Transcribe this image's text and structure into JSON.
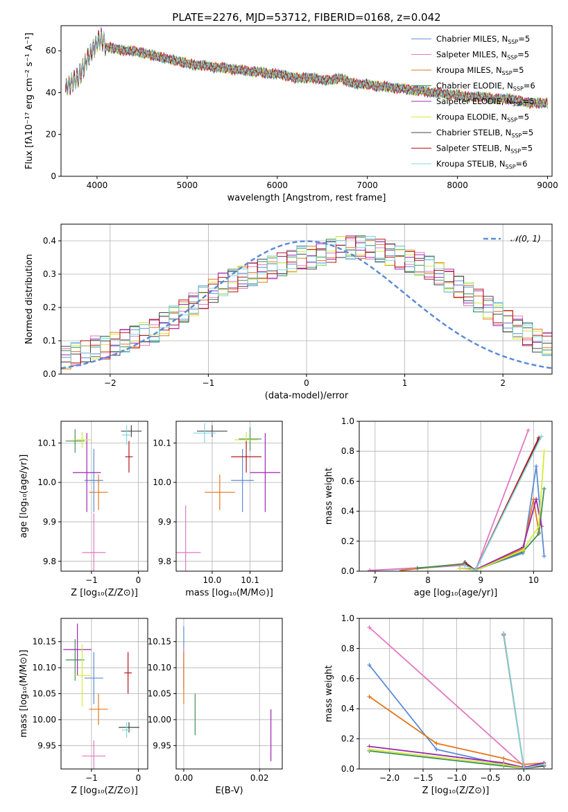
{
  "figure": {
    "title": "PLATE=2276, MJD=53712, FIBERID=0168, z=0.042"
  },
  "series": [
    {
      "name": "Chabrier MILES",
      "nssp": "5",
      "color": "#5b8bd6"
    },
    {
      "name": "Salpeter MILES",
      "nssp": "5",
      "color": "#e377c2"
    },
    {
      "name": "Kroupa MILES",
      "nssp": "5",
      "color": "#e3761b"
    },
    {
      "name": "Chabrier ELODIE",
      "nssp": "6",
      "color": "#3f8f55"
    },
    {
      "name": "Salpeter ELODIE",
      "nssp": "5",
      "color": "#9b27b0"
    },
    {
      "name": "Kroupa ELODIE",
      "nssp": "5",
      "color": "#d4ea3a"
    },
    {
      "name": "Chabrier STELIB",
      "nssp": "5",
      "color": "#444444"
    },
    {
      "name": "Salpeter STELIB",
      "nssp": "5",
      "color": "#b5141a"
    },
    {
      "name": "Kroupa STELIB",
      "nssp": "6",
      "color": "#7fd8dc"
    }
  ],
  "chart_data": [
    {
      "id": "spectrum",
      "type": "line",
      "xlabel": "wavelength [Angstrom, rest frame]",
      "ylabel": "Flux [fλ10⁻¹⁷ erg cm⁻² s⁻¹ A⁻¹]",
      "xlim": [
        3600,
        9050
      ],
      "ylim": [
        0,
        72
      ],
      "xticks": [
        4000,
        5000,
        6000,
        7000,
        8000,
        9000
      ],
      "yticks": [
        0,
        20,
        40,
        60
      ],
      "data_x": [
        3650,
        3700,
        3750,
        3800,
        3850,
        3900,
        3950,
        4000,
        4050,
        4100,
        4200,
        4300,
        4400,
        4500,
        4600,
        4700,
        4800,
        4900,
        5000,
        5100,
        5200,
        5300,
        5400,
        5500,
        5600,
        5700,
        5800,
        5900,
        6000,
        6100,
        6200,
        6300,
        6400,
        6500,
        6600,
        6700,
        6800,
        6900,
        7000,
        7100,
        7200,
        7300,
        7400,
        7500,
        7600,
        7700,
        7800,
        7900,
        8000,
        8100,
        8200,
        8300,
        8400,
        8500,
        8600,
        8700,
        8800,
        8900,
        9000
      ],
      "data_y": [
        42,
        44,
        46,
        48,
        52,
        57,
        60,
        64,
        66,
        62,
        61,
        60,
        60,
        59,
        58,
        57,
        56,
        55,
        54,
        53,
        53,
        52,
        52,
        51,
        51,
        50,
        50,
        49,
        49,
        48,
        47,
        47,
        47,
        46,
        46,
        47,
        45,
        44,
        44,
        43,
        43,
        42,
        42,
        41,
        41,
        40,
        40,
        39,
        39,
        38,
        38,
        38,
        37,
        37,
        37,
        36,
        35,
        35,
        35
      ]
    },
    {
      "id": "residual-histogram",
      "type": "bar",
      "xlabel": "(data-model)/error",
      "ylabel": "Normed distribution",
      "xlim": [
        -2.5,
        2.5
      ],
      "ylim": [
        0,
        0.45
      ],
      "xticks": [
        -2,
        -1,
        0,
        1,
        2
      ],
      "yticks": [
        0.0,
        0.1,
        0.2,
        0.3,
        0.4
      ],
      "reference_curve": "𝒩(0, 1)",
      "bin_width": 0.1,
      "values_envelope": [
        0.05,
        0.06,
        0.07,
        0.08,
        0.08,
        0.09,
        0.1,
        0.11,
        0.12,
        0.13,
        0.15,
        0.17,
        0.19,
        0.21,
        0.23,
        0.25,
        0.27,
        0.28,
        0.29,
        0.3,
        0.31,
        0.32,
        0.33,
        0.34,
        0.35,
        0.35,
        0.36,
        0.37,
        0.38,
        0.38,
        0.38,
        0.38,
        0.37,
        0.36,
        0.35,
        0.34,
        0.33,
        0.32,
        0.3,
        0.28,
        0.26,
        0.24,
        0.22,
        0.2,
        0.18,
        0.16,
        0.14,
        0.12,
        0.1,
        0.09
      ]
    },
    {
      "id": "age-vs-metallicity",
      "type": "scatter",
      "xlabel": "Z [log₁₀(Z/Z⊙)]",
      "ylabel": "age  [log₁₀(age/yr)]",
      "xlim": [
        -1.65,
        0.2
      ],
      "ylim": [
        9.775,
        10.155
      ],
      "xticks": [
        -1,
        0
      ],
      "yticks": [
        9.8,
        9.9,
        10.0,
        10.1
      ],
      "points": [
        {
          "x": -0.95,
          "y": 10.005,
          "xerr": 0.2,
          "yerr": 0.08
        },
        {
          "x": -0.95,
          "y": 9.822,
          "xerr": 0.25,
          "yerr": 0.1
        },
        {
          "x": -0.85,
          "y": 9.975,
          "xerr": 0.2,
          "yerr": 0.045
        },
        {
          "x": -1.35,
          "y": 10.105,
          "xerr": 0.2,
          "yerr": 0.03
        },
        {
          "x": -1.1,
          "y": 10.025,
          "xerr": 0.3,
          "yerr": 0.1
        },
        {
          "x": -1.2,
          "y": 10.108,
          "xerr": 0.18,
          "yerr": 0.02
        },
        {
          "x": -0.15,
          "y": 10.13,
          "xerr": 0.22,
          "yerr": 0.015
        },
        {
          "x": -0.2,
          "y": 10.065,
          "xerr": 0.08,
          "yerr": 0.04
        },
        {
          "x": -0.25,
          "y": 10.12,
          "xerr": 0.1,
          "yerr": 0.025
        }
      ]
    },
    {
      "id": "age-vs-mass",
      "type": "scatter",
      "xlabel": "mass [log₁₀(M/M⊙)]",
      "ylabel": "",
      "xlim": [
        9.905,
        10.185
      ],
      "ylim": [
        9.775,
        10.155
      ],
      "xticks": [
        10.0,
        10.1
      ],
      "yticks": [
        9.8,
        9.9,
        10.0,
        10.1
      ],
      "points": [
        {
          "x": 10.08,
          "y": 10.005,
          "xerr": 0.03,
          "yerr": 0.08
        },
        {
          "x": 9.93,
          "y": 9.822,
          "xerr": 0.04,
          "yerr": 0.12
        },
        {
          "x": 10.02,
          "y": 9.975,
          "xerr": 0.04,
          "yerr": 0.045
        },
        {
          "x": 10.1,
          "y": 10.11,
          "xerr": 0.03,
          "yerr": 0.03
        },
        {
          "x": 10.14,
          "y": 10.025,
          "xerr": 0.04,
          "yerr": 0.1
        },
        {
          "x": 10.09,
          "y": 10.108,
          "xerr": 0.03,
          "yerr": 0.02
        },
        {
          "x": 10.0,
          "y": 10.13,
          "xerr": 0.04,
          "yerr": 0.015
        },
        {
          "x": 10.09,
          "y": 10.065,
          "xerr": 0.04,
          "yerr": 0.04
        },
        {
          "x": 9.98,
          "y": 10.125,
          "xerr": 0.03,
          "yerr": 0.025
        }
      ]
    },
    {
      "id": "mass-weight-vs-age",
      "type": "line",
      "xlabel": "age  [log₁₀(age/yr)]",
      "ylabel": "mass weight",
      "xlim": [
        6.7,
        10.35
      ],
      "ylim": [
        0,
        1.0
      ],
      "xticks": [
        7,
        8,
        9,
        10
      ],
      "yticks": [
        0.0,
        0.2,
        0.4,
        0.6,
        0.8,
        1.0
      ],
      "lines": [
        {
          "x": [
            6.9,
            7.8,
            8.7,
            8.9,
            9.8,
            10.05,
            10.2
          ],
          "y": [
            0.005,
            0.02,
            0.04,
            0.01,
            0.12,
            0.7,
            0.1
          ]
        },
        {
          "x": [
            6.9,
            8.7,
            8.9,
            9.9
          ],
          "y": [
            0.005,
            0.04,
            0.005,
            0.94
          ]
        },
        {
          "x": [
            7.5,
            8.7,
            8.9,
            9.8,
            10.0,
            10.1
          ],
          "y": [
            0.005,
            0.05,
            0.01,
            0.15,
            0.48,
            0.26
          ]
        },
        {
          "x": [
            7.8,
            8.7,
            8.9,
            9.8,
            10.1,
            10.2
          ],
          "y": [
            0.02,
            0.05,
            0.005,
            0.13,
            0.25,
            0.55
          ]
        },
        {
          "x": [
            8.6,
            8.9,
            9.8,
            10.05,
            10.15
          ],
          "y": [
            0.02,
            0.01,
            0.16,
            0.48,
            0.3
          ]
        },
        {
          "x": [
            8.6,
            8.9,
            9.8,
            10.1,
            10.2
          ],
          "y": [
            0.02,
            0.005,
            0.14,
            0.3,
            0.8
          ]
        },
        {
          "x": [
            8.7,
            8.9,
            10.1
          ],
          "y": [
            0.06,
            0.005,
            0.88
          ]
        },
        {
          "x": [
            8.7,
            8.9,
            10.1
          ],
          "y": [
            0.05,
            0.005,
            0.89
          ]
        },
        {
          "x": [
            8.7,
            8.9,
            10.15
          ],
          "y": [
            0.04,
            0.005,
            0.9
          ]
        }
      ]
    },
    {
      "id": "mass-vs-metallicity",
      "type": "scatter",
      "xlabel": "Z [log₁₀(Z/Z⊙)]",
      "ylabel": "mass [log₁₀(M/M⊙)]",
      "xlim": [
        -1.65,
        0.2
      ],
      "ylim": [
        9.905,
        10.195
      ],
      "xticks": [
        -1,
        0
      ],
      "yticks": [
        9.95,
        10.0,
        10.05,
        10.1,
        10.15
      ],
      "points": [
        {
          "x": -0.95,
          "y": 10.08,
          "xerr": 0.2,
          "yerr": 0.05
        },
        {
          "x": -0.95,
          "y": 9.93,
          "xerr": 0.25,
          "yerr": 0.03
        },
        {
          "x": -0.85,
          "y": 10.02,
          "xerr": 0.2,
          "yerr": 0.03
        },
        {
          "x": -1.35,
          "y": 10.115,
          "xerr": 0.2,
          "yerr": 0.04
        },
        {
          "x": -1.3,
          "y": 10.135,
          "xerr": 0.3,
          "yerr": 0.05
        },
        {
          "x": -1.2,
          "y": 10.085,
          "xerr": 0.18,
          "yerr": 0.06
        },
        {
          "x": -0.2,
          "y": 9.985,
          "xerr": 0.22,
          "yerr": 0.01
        },
        {
          "x": -0.22,
          "y": 10.09,
          "xerr": 0.08,
          "yerr": 0.04
        },
        {
          "x": -0.25,
          "y": 9.98,
          "xerr": 0.1,
          "yerr": 0.015
        }
      ]
    },
    {
      "id": "mass-vs-ebv",
      "type": "scatter",
      "xlabel": "E(B-V)",
      "ylabel": "",
      "xlim": [
        -0.002,
        0.026
      ],
      "ylim": [
        9.905,
        10.195
      ],
      "xticks": [
        0.0,
        0.02
      ],
      "yticks": [
        9.95,
        10.0,
        10.05,
        10.1,
        10.15
      ],
      "points": [
        {
          "x": 0.0,
          "y": 10.12,
          "yerr": 0.06
        },
        {
          "x": 0.0,
          "y": 10.1,
          "yerr": 0.04
        },
        {
          "x": 0.0,
          "y": 10.08,
          "yerr": 0.05
        },
        {
          "x": 0.003,
          "y": 10.01,
          "yerr": 0.04
        },
        {
          "x": 0.023,
          "y": 9.97,
          "yerr": 0.05
        }
      ]
    },
    {
      "id": "mass-weight-vs-metallicity",
      "type": "line",
      "xlabel": "Z [log₁₀(Z/Z⊙)]",
      "ylabel": "mass weight",
      "xlim": [
        -2.45,
        0.42
      ],
      "ylim": [
        0,
        1.0
      ],
      "xticks": [
        -2.0,
        -1.5,
        -1.0,
        -0.5,
        0.0
      ],
      "yticks": [
        0.0,
        0.2,
        0.4,
        0.6,
        0.8,
        1.0
      ],
      "lines": [
        {
          "x": [
            -2.3,
            -1.3,
            -0.3,
            0.0,
            0.3
          ],
          "y": [
            0.69,
            0.13,
            0.03,
            0.01,
            0.02
          ]
        },
        {
          "x": [
            -2.3,
            0.0
          ],
          "y": [
            0.94,
            0.02
          ]
        },
        {
          "x": [
            -2.3,
            -1.3,
            -0.3,
            0.0,
            0.3
          ],
          "y": [
            0.48,
            0.17,
            0.07,
            0.03,
            0.04
          ]
        },
        {
          "x": [
            -2.3,
            -0.3,
            0.0,
            0.3
          ],
          "y": [
            0.12,
            0.02,
            0.005,
            0.03
          ]
        },
        {
          "x": [
            -2.3,
            -0.3,
            0.0,
            0.3
          ],
          "y": [
            0.15,
            0.04,
            0.01,
            0.04
          ]
        },
        {
          "x": [
            -2.3,
            -0.3,
            0.0,
            0.3
          ],
          "y": [
            0.13,
            0.03,
            0.005,
            0.02
          ]
        },
        {
          "x": [
            -0.3,
            0.0,
            0.3
          ],
          "y": [
            0.9,
            0.005,
            0.02
          ]
        },
        {
          "x": [
            -0.3,
            0.0,
            0.3
          ],
          "y": [
            0.89,
            0.005,
            0.03
          ]
        },
        {
          "x": [
            -0.3,
            0.0,
            0.3
          ],
          "y": [
            0.9,
            0.005,
            0.03
          ]
        }
      ]
    }
  ]
}
